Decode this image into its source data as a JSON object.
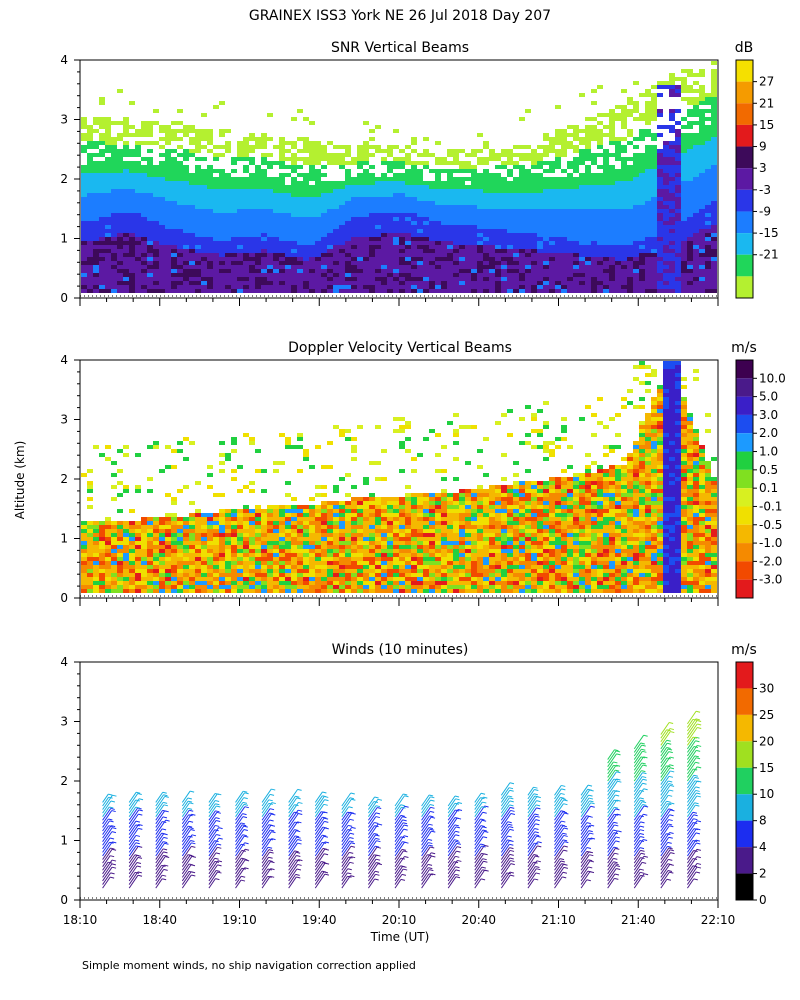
{
  "figure": {
    "title": "GRAINEX ISS3 York NE  26 Jul 2018 Day 207",
    "shared_ylabel": "Altitude (km)",
    "shared_xlabel": "Time (UT)",
    "footnote": "Simple moment winds, no ship navigation correction applied",
    "x_ticks": [
      "18:10",
      "18:40",
      "19:10",
      "19:40",
      "20:10",
      "20:40",
      "21:10",
      "21:40",
      "22:10"
    ],
    "y_ticks": [
      "0",
      "1",
      "2",
      "3",
      "4"
    ]
  },
  "chart_data": [
    {
      "type": "heatmap",
      "title": "SNR Vertical Beams",
      "xlabel": "Time (UT)",
      "ylabel": "Altitude (km)",
      "x_range": [
        "18:10",
        "22:10"
      ],
      "ylim": [
        0,
        4
      ],
      "colorbar": {
        "unit": "dB",
        "labels": [
          "27",
          "21",
          "15",
          "9",
          "3",
          "-3",
          "-9",
          "-15",
          "-21"
        ],
        "colors": [
          "#f5e000",
          "#f59b00",
          "#f26a00",
          "#e31a1c",
          "#3d0a5a",
          "#5c19a3",
          "#2a36e8",
          "#1c7dff",
          "#1ab8f0",
          "#20d65a",
          "#b4f030"
        ]
      },
      "features": {
        "strong_echo_layer_top_km": [
          1.3,
          1.5,
          1.2,
          1.0,
          1.1,
          0.9,
          1.4,
          1.5,
          1.3,
          1.2,
          1.1,
          1.0,
          0.9,
          1.2,
          1.7
        ],
        "weak_echo_top_km": [
          3.1,
          3.0,
          3.0,
          2.9,
          2.8,
          2.7,
          2.6,
          2.6,
          2.5,
          2.6,
          2.7,
          3.0,
          3.3,
          3.8,
          4.0
        ],
        "times_UT": [
          "18:10",
          "18:27",
          "18:44",
          "19:01",
          "19:18",
          "19:35",
          "19:52",
          "20:09",
          "20:26",
          "20:43",
          "21:00",
          "21:17",
          "21:34",
          "21:51",
          "22:08"
        ]
      }
    },
    {
      "type": "heatmap",
      "title": "Doppler Velocity Vertical Beams",
      "xlabel": "Time (UT)",
      "ylabel": "Altitude (km)",
      "x_range": [
        "18:10",
        "22:10"
      ],
      "ylim": [
        0,
        4
      ],
      "colorbar": {
        "unit": "m/s",
        "labels": [
          "10.0",
          "5.0",
          "3.0",
          "2.0",
          "1.0",
          "0.5",
          "0.1",
          "-0.1",
          "-0.5",
          "-1.0",
          "-2.0",
          "-3.0"
        ],
        "colors": [
          "#3d0050",
          "#4a1a8a",
          "#3a1fc8",
          "#1c4df0",
          "#1c9aff",
          "#20d040",
          "#80e020",
          "#d8f020",
          "#f0e000",
          "#f5b800",
          "#f58a00",
          "#f24a00",
          "#e31a1c"
        ]
      },
      "features": {
        "echo_top_km": [
          1.3,
          1.35,
          1.4,
          1.5,
          1.55,
          1.6,
          1.7,
          1.75,
          1.8,
          1.9,
          2.0,
          2.1,
          2.3,
          4.0,
          2.0
        ],
        "times_UT": [
          "18:10",
          "18:27",
          "18:44",
          "19:01",
          "19:18",
          "19:35",
          "19:52",
          "20:09",
          "20:26",
          "20:43",
          "21:00",
          "21:17",
          "21:34",
          "21:51",
          "22:08"
        ]
      }
    },
    {
      "type": "scatter",
      "title": "Winds (10 minutes)",
      "xlabel": "Time (UT)",
      "ylabel": "Altitude (km)",
      "x_range": [
        "18:10",
        "22:10"
      ],
      "ylim": [
        0,
        4
      ],
      "colorbar": {
        "unit": "m/s",
        "labels": [
          "30",
          "25",
          "20",
          "15",
          "10",
          "8",
          "4",
          "2",
          "0"
        ],
        "colors": [
          "#e31a1c",
          "#f26a00",
          "#f5b800",
          "#a0e020",
          "#20d060",
          "#1ab0e0",
          "#1c2df0",
          "#4a1a8a",
          "#000000"
        ]
      },
      "profile_times_UT": [
        "18:20",
        "18:30",
        "18:40",
        "18:50",
        "19:00",
        "19:10",
        "19:20",
        "19:30",
        "19:40",
        "19:50",
        "20:00",
        "20:10",
        "20:20",
        "20:30",
        "20:40",
        "20:50",
        "21:00",
        "21:10",
        "21:20",
        "21:30",
        "21:40",
        "21:50",
        "22:00"
      ],
      "profile_top_km": [
        1.7,
        1.7,
        1.7,
        1.7,
        1.7,
        1.7,
        1.7,
        1.7,
        1.7,
        1.6,
        1.6,
        1.6,
        1.6,
        1.6,
        1.7,
        1.8,
        1.8,
        1.8,
        1.8,
        2.4,
        2.6,
        2.8,
        3.0
      ]
    }
  ]
}
